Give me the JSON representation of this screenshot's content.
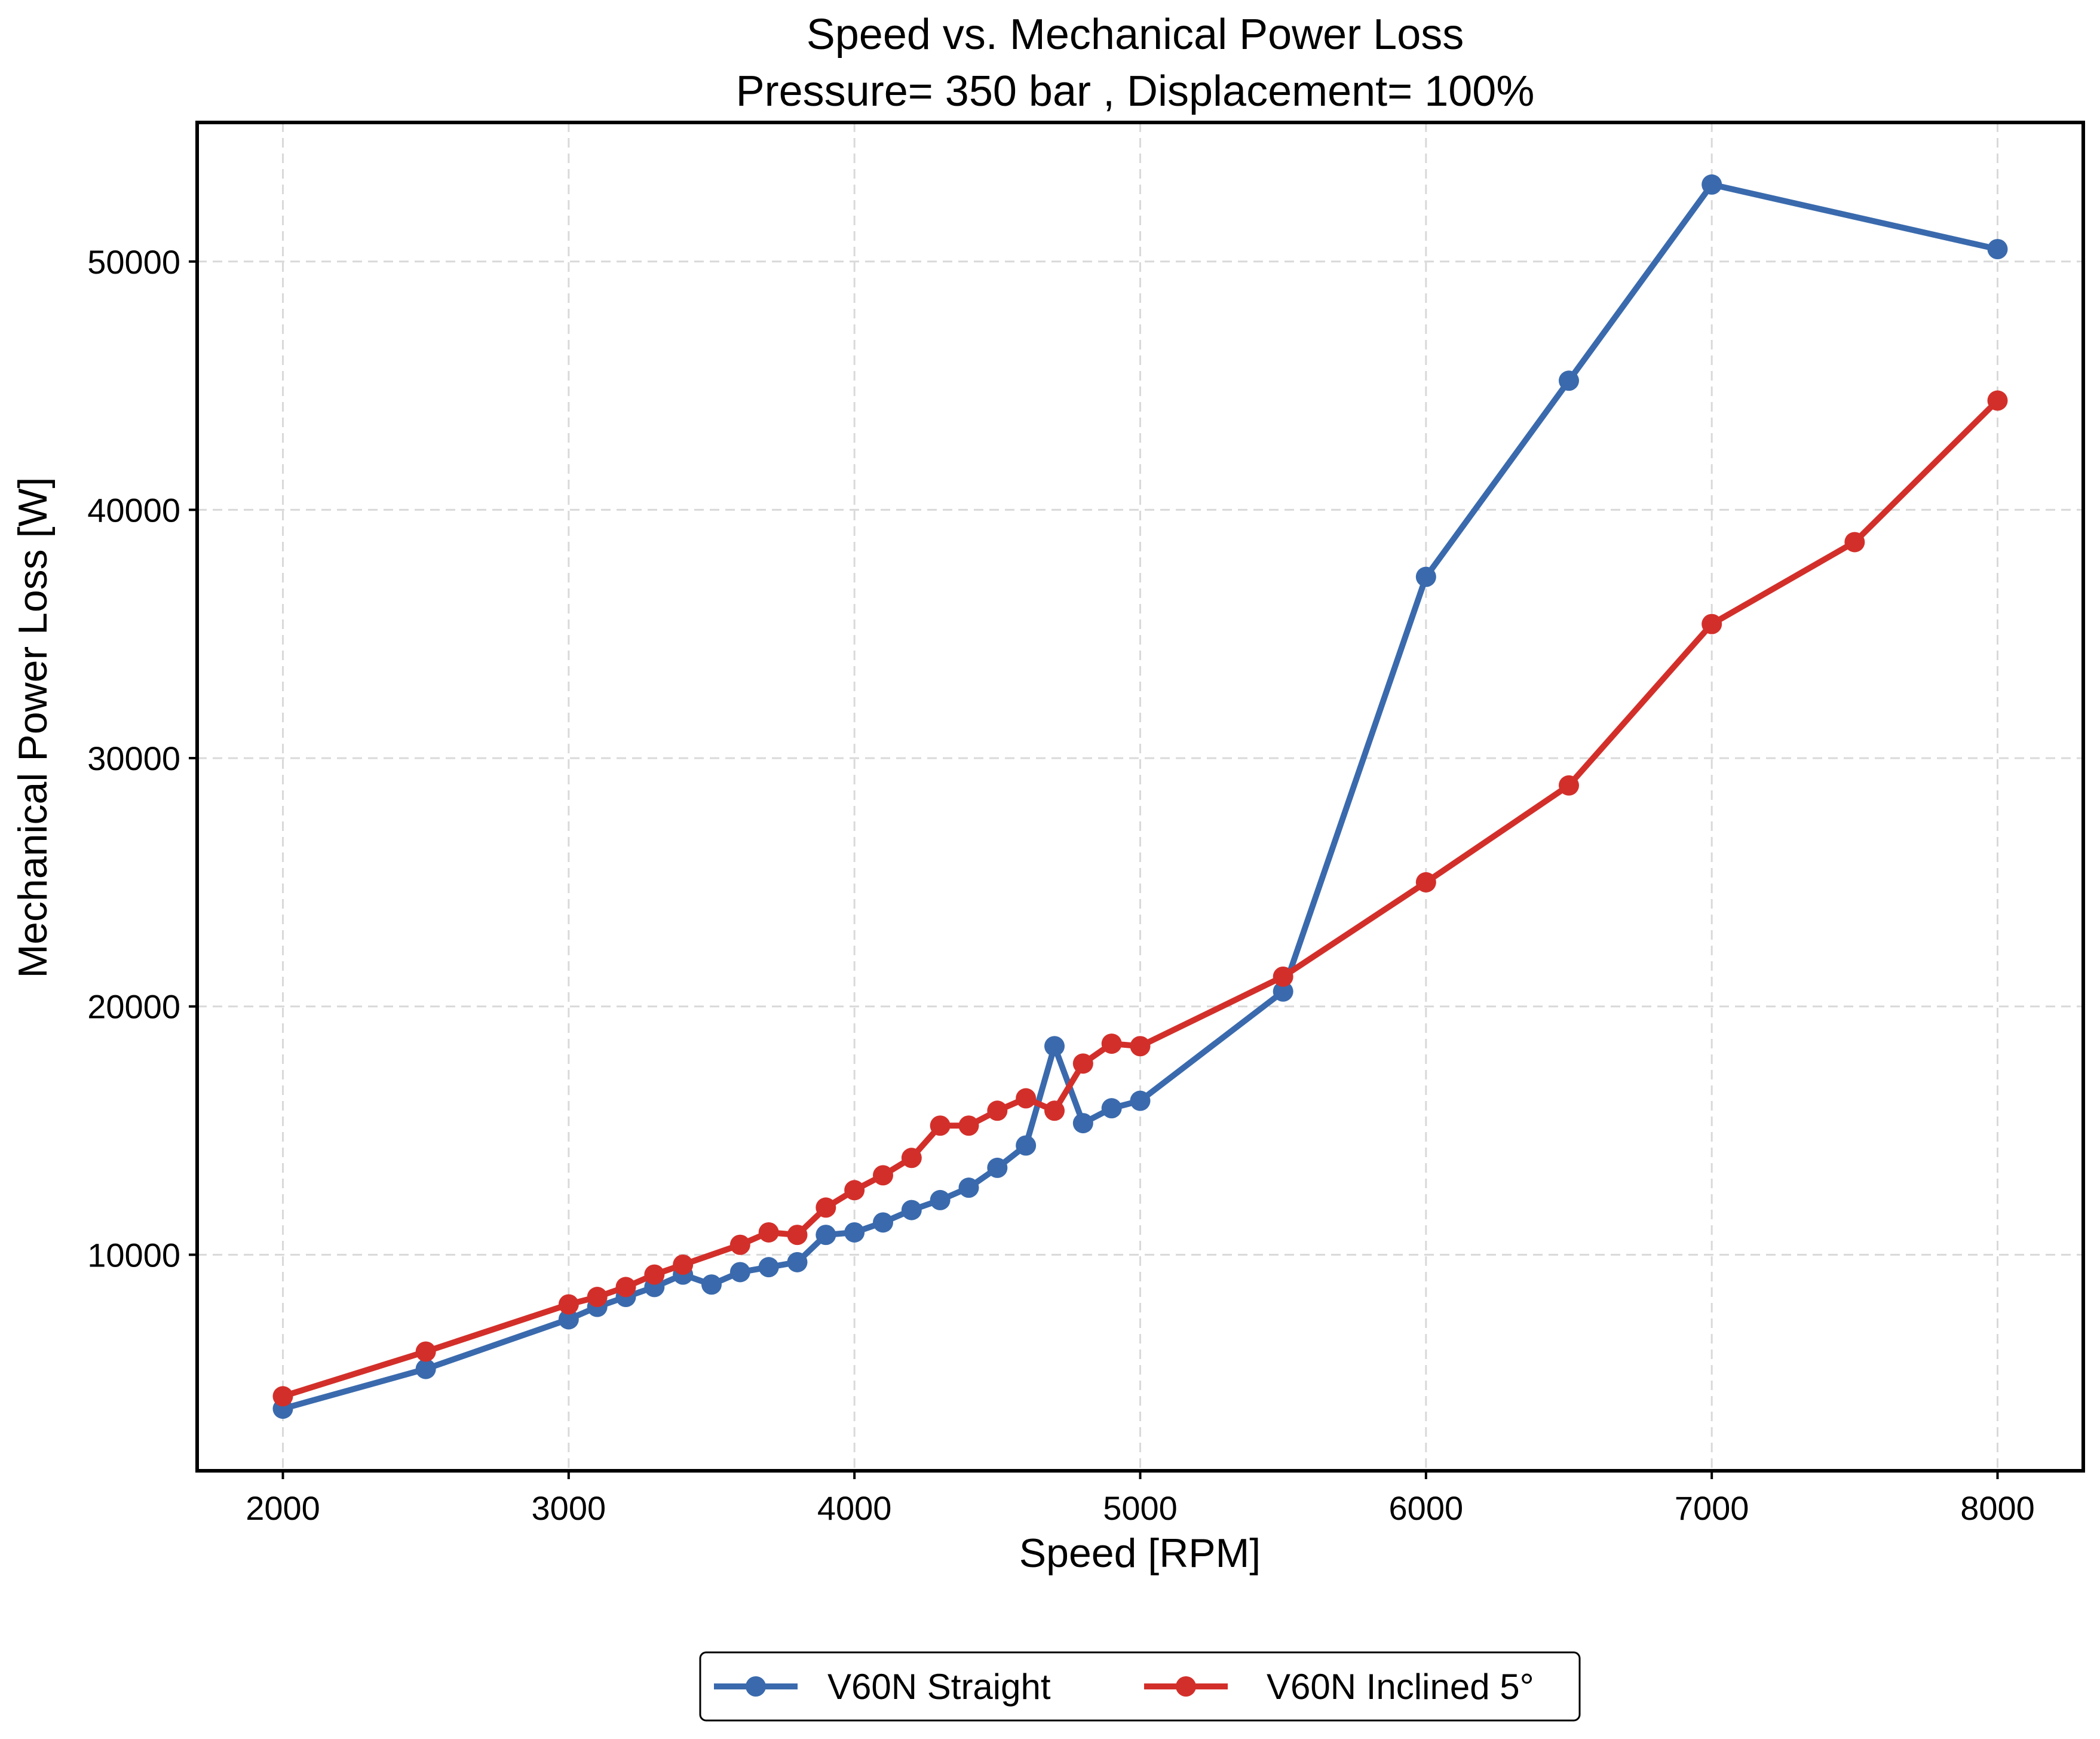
{
  "colors": {
    "straight": "#3a6aad",
    "inclined": "#d32f2a",
    "grid": "#d9d9d9"
  },
  "chart_data": {
    "type": "line",
    "title": "Speed vs. Mechanical Power Loss",
    "subtitle": "Pressure= 350 bar , Displacement= 100%",
    "xlabel": "Speed [RPM]",
    "ylabel": "Mechanical Power Loss [W]",
    "xlim": [
      1700,
      8300
    ],
    "ylim": [
      1300,
      55600
    ],
    "xticks": [
      2000,
      3000,
      4000,
      5000,
      6000,
      7000,
      8000
    ],
    "xtick_labels": [
      "2000",
      "3000",
      "4000",
      "5000",
      "6000",
      "7000",
      "8000"
    ],
    "yticks": [
      10000,
      20000,
      30000,
      40000,
      50000
    ],
    "ytick_labels": [
      "10000",
      "20000",
      "30000",
      "40000",
      "50000"
    ],
    "grid": true,
    "legend_position": "bottom-center",
    "series": [
      {
        "name": "V60N Straight",
        "color": "#3a6aad",
        "x": [
          2000,
          2500,
          3000,
          3100,
          3200,
          3300,
          3400,
          3500,
          3600,
          3700,
          3800,
          3900,
          4000,
          4100,
          4200,
          4300,
          4400,
          4500,
          4600,
          4700,
          4800,
          4900,
          5000,
          5500,
          6000,
          6500,
          7000,
          8000
        ],
        "y": [
          3800,
          5400,
          7400,
          7900,
          8300,
          8700,
          9200,
          8800,
          9300,
          9500,
          9700,
          10800,
          10900,
          11300,
          11800,
          12200,
          12700,
          13500,
          14400,
          18400,
          15300,
          15900,
          16200,
          20600,
          37300,
          45200,
          53100,
          50500
        ]
      },
      {
        "name": "V60N Inclined 5°",
        "color": "#d32f2a",
        "x": [
          2000,
          2500,
          3000,
          3100,
          3200,
          3300,
          3400,
          3600,
          3700,
          3800,
          3900,
          4000,
          4100,
          4200,
          4300,
          4400,
          4500,
          4600,
          4700,
          4800,
          4900,
          5000,
          5500,
          6000,
          6500,
          7000,
          7500,
          8000
        ],
        "y": [
          4300,
          6100,
          8000,
          8300,
          8700,
          9200,
          9600,
          10400,
          10900,
          10800,
          11900,
          12600,
          13200,
          13900,
          15200,
          15200,
          15800,
          16300,
          15800,
          17700,
          18500,
          18400,
          21200,
          25000,
          28900,
          35400,
          38700,
          44400
        ]
      }
    ]
  }
}
